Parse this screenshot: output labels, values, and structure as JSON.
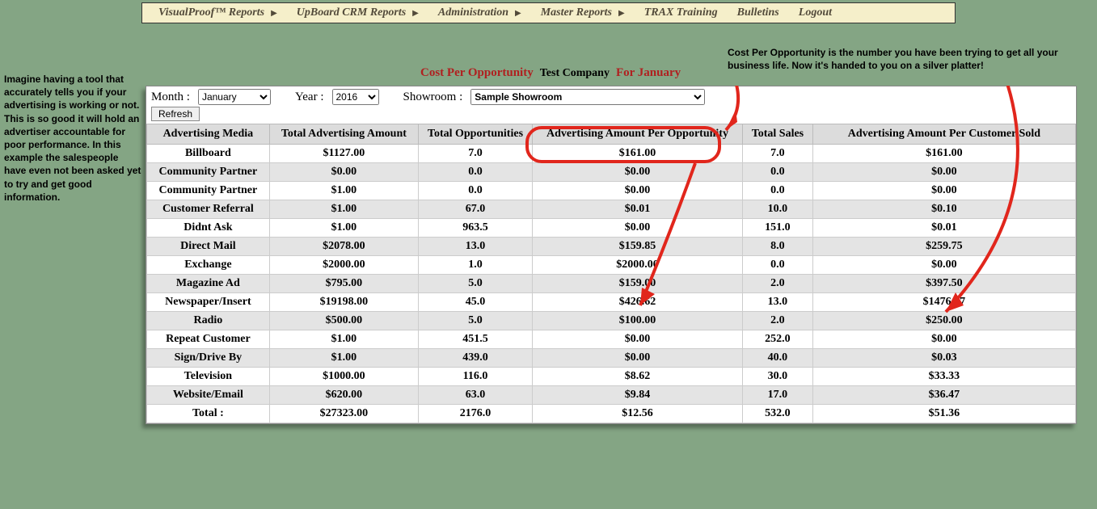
{
  "nav": {
    "items": [
      {
        "label": "VisualProof™ Reports",
        "hasArrow": true
      },
      {
        "label": "UpBoard CRM Reports",
        "hasArrow": true
      },
      {
        "label": "Administration",
        "hasArrow": true
      },
      {
        "label": "Master Reports",
        "hasArrow": true
      },
      {
        "label": "TRAX Training",
        "hasArrow": false
      },
      {
        "label": "Bulletins",
        "hasArrow": false
      },
      {
        "label": "Logout",
        "hasArrow": false
      }
    ]
  },
  "annotations": {
    "left": "Imagine having a tool that accurately tells you if your advertising is working or not.  This is so good it will hold an advertiser accountable for poor performance.  In this example the salespeople have even not been asked yet to try and get good information.",
    "topRight": "Cost Per Opportunity is the number you have been trying to get all your business life.  Now it's handed to you on a silver platter!"
  },
  "title": {
    "red1": "Cost Per Opportunity",
    "black": "Test Company",
    "red2": "For January"
  },
  "filters": {
    "monthLabel": "Month :",
    "monthVal": "January",
    "yearLabel": "Year :",
    "yearVal": "2016",
    "showroomLabel": "Showroom :",
    "showroomVal": "Sample Showroom",
    "refresh": "Refresh"
  },
  "table": {
    "headers": [
      "Advertising Media",
      "Total Advertising Amount",
      "Total Opportunities",
      "Advertising Amount Per Opportunity",
      "Total Sales",
      "Advertising Amount Per Customer Sold"
    ],
    "rows": [
      [
        "Billboard",
        "$1127.00",
        "7.0",
        "$161.00",
        "7.0",
        "$161.00"
      ],
      [
        "Community Partner",
        "$0.00",
        "0.0",
        "$0.00",
        "0.0",
        "$0.00"
      ],
      [
        "Community Partner",
        "$1.00",
        "0.0",
        "$0.00",
        "0.0",
        "$0.00"
      ],
      [
        "Customer Referral",
        "$1.00",
        "67.0",
        "$0.01",
        "10.0",
        "$0.10"
      ],
      [
        "Didnt Ask",
        "$1.00",
        "963.5",
        "$0.00",
        "151.0",
        "$0.01"
      ],
      [
        "Direct Mail",
        "$2078.00",
        "13.0",
        "$159.85",
        "8.0",
        "$259.75"
      ],
      [
        "Exchange",
        "$2000.00",
        "1.0",
        "$2000.00",
        "0.0",
        "$0.00"
      ],
      [
        "Magazine Ad",
        "$795.00",
        "5.0",
        "$159.00",
        "2.0",
        "$397.50"
      ],
      [
        "Newspaper/Insert",
        "$19198.00",
        "45.0",
        "$426.62",
        "13.0",
        "$1476.77"
      ],
      [
        "Radio",
        "$500.00",
        "5.0",
        "$100.00",
        "2.0",
        "$250.00"
      ],
      [
        "Repeat Customer",
        "$1.00",
        "451.5",
        "$0.00",
        "252.0",
        "$0.00"
      ],
      [
        "Sign/Drive By",
        "$1.00",
        "439.0",
        "$0.00",
        "40.0",
        "$0.03"
      ],
      [
        "Television",
        "$1000.00",
        "116.0",
        "$8.62",
        "30.0",
        "$33.33"
      ],
      [
        "Website/Email",
        "$620.00",
        "63.0",
        "$9.84",
        "17.0",
        "$36.47"
      ],
      [
        "Total :",
        "$27323.00",
        "2176.0",
        "$12.56",
        "532.0",
        "$51.36"
      ]
    ]
  },
  "style": {
    "annotationColor": "#e1261c",
    "annotationStroke": 4
  }
}
